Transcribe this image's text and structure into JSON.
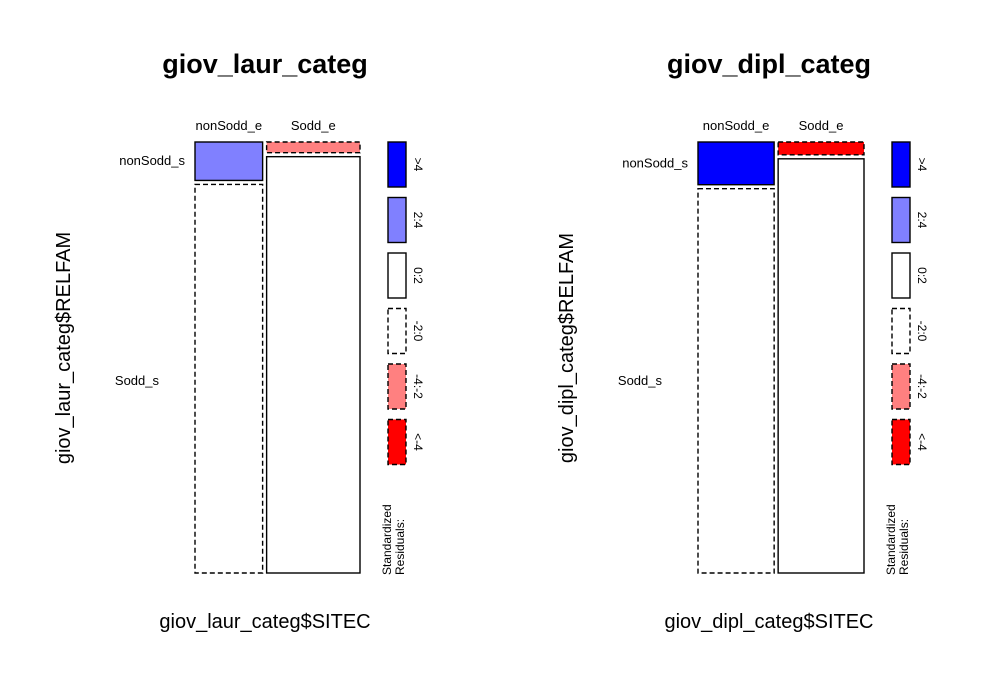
{
  "chart_data": [
    {
      "type": "mosaic",
      "title": "giov_laur_categ",
      "xlabel": "giov_laur_categ$SITEC",
      "ylabel": "giov_laur_categ$RELFAM",
      "x_categories": [
        "nonSodd_e",
        "Sodd_e"
      ],
      "y_categories": [
        "nonSodd_s",
        "Sodd_s"
      ],
      "x_proportions": [
        0.42,
        0.58
      ],
      "cells": [
        {
          "x": "nonSodd_e",
          "y": "nonSodd_s",
          "proportion_within_x": 0.09,
          "residual_class": "2:4"
        },
        {
          "x": "nonSodd_e",
          "y": "Sodd_s",
          "proportion_within_x": 0.91,
          "residual_class": "-2:0"
        },
        {
          "x": "Sodd_e",
          "y": "nonSodd_s",
          "proportion_within_x": 0.025,
          "residual_class": "-4:-2"
        },
        {
          "x": "Sodd_e",
          "y": "Sodd_s",
          "proportion_within_x": 0.975,
          "residual_class": "0:2"
        }
      ]
    },
    {
      "type": "mosaic",
      "title": "giov_dipl_categ",
      "xlabel": "giov_dipl_categ$SITEC",
      "ylabel": "giov_dipl_categ$RELFAM",
      "x_categories": [
        "nonSodd_e",
        "Sodd_e"
      ],
      "y_categories": [
        "nonSodd_s",
        "Sodd_s"
      ],
      "x_proportions": [
        0.47,
        0.53
      ],
      "cells": [
        {
          "x": "nonSodd_e",
          "y": "nonSodd_s",
          "proportion_within_x": 0.1,
          "residual_class": ">4"
        },
        {
          "x": "nonSodd_e",
          "y": "Sodd_s",
          "proportion_within_x": 0.9,
          "residual_class": "-2:0"
        },
        {
          "x": "Sodd_e",
          "y": "nonSodd_s",
          "proportion_within_x": 0.03,
          "residual_class": "<-4"
        },
        {
          "x": "Sodd_e",
          "y": "Sodd_s",
          "proportion_within_x": 0.97,
          "residual_class": "0:2"
        }
      ]
    }
  ],
  "legend": {
    "title_line1": "Standardized",
    "title_line2": "Residuals:",
    "classes": [
      {
        "label": ">4",
        "color": "#0000ff",
        "dashed": false
      },
      {
        "label": "2:4",
        "color": "#8080ff",
        "dashed": false
      },
      {
        "label": "0:2",
        "color": "#ffffff",
        "dashed": false
      },
      {
        "label": "-2:0",
        "color": "#ffffff",
        "dashed": true
      },
      {
        "label": "-4:-2",
        "color": "#ff8080",
        "dashed": true
      },
      {
        "label": "<-4",
        "color": "#ff0000",
        "dashed": true
      }
    ]
  }
}
